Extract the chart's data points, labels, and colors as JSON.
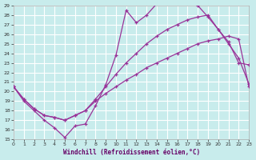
{
  "xlabel": "Windchill (Refroidissement éolien,°C)",
  "background_color": "#c8ecec",
  "grid_color": "#b8d8d8",
  "line_color": "#993399",
  "xlim": [
    0,
    23
  ],
  "ylim": [
    15,
    29
  ],
  "xticks": [
    0,
    1,
    2,
    3,
    4,
    5,
    6,
    7,
    8,
    9,
    10,
    11,
    12,
    13,
    14,
    15,
    16,
    17,
    18,
    19,
    20,
    21,
    22,
    23
  ],
  "yticks": [
    15,
    16,
    17,
    18,
    19,
    20,
    21,
    22,
    23,
    24,
    25,
    26,
    27,
    28,
    29
  ],
  "line1_x": [
    0,
    1,
    2,
    3,
    4,
    5,
    6,
    7,
    8,
    9,
    10,
    11,
    12,
    13,
    14,
    15,
    16,
    17,
    18,
    19,
    20,
    21,
    22,
    23
  ],
  "line1_y": [
    20.5,
    19.0,
    18.0,
    17.0,
    16.2,
    15.2,
    16.4,
    16.6,
    18.5,
    20.7,
    23.8,
    28.5,
    27.2,
    28.0,
    29.2,
    29.5,
    29.3,
    29.3,
    29.0,
    27.8,
    26.5,
    25.2,
    23.0,
    22.8
  ],
  "line2_x": [
    0,
    1,
    2,
    3,
    4,
    5,
    6,
    7,
    8,
    9,
    10,
    11,
    12,
    13,
    14,
    15,
    16,
    17,
    18,
    19,
    20,
    21,
    22,
    23
  ],
  "line2_y": [
    20.5,
    19.2,
    18.2,
    17.5,
    17.3,
    17.0,
    17.5,
    18.0,
    19.2,
    20.5,
    21.8,
    23.0,
    24.0,
    25.0,
    25.8,
    26.5,
    27.0,
    27.5,
    27.8,
    28.0,
    26.5,
    25.0,
    23.5,
    20.8
  ],
  "line3_x": [
    0,
    1,
    2,
    3,
    4,
    5,
    6,
    7,
    8,
    9,
    10,
    11,
    12,
    13,
    14,
    15,
    16,
    17,
    18,
    19,
    20,
    21,
    22,
    23
  ],
  "line3_y": [
    20.5,
    19.2,
    18.2,
    17.5,
    17.3,
    17.0,
    17.5,
    18.0,
    19.0,
    19.8,
    20.5,
    21.2,
    21.8,
    22.5,
    23.0,
    23.5,
    24.0,
    24.5,
    25.0,
    25.3,
    25.5,
    25.8,
    25.5,
    20.5
  ]
}
